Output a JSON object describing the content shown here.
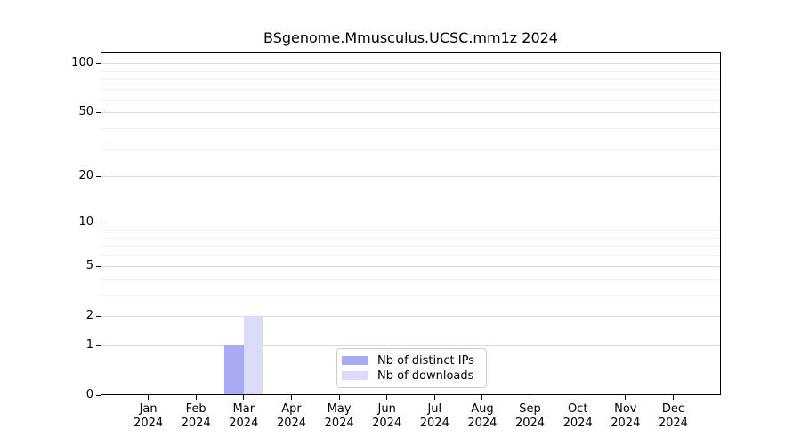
{
  "chart_data": {
    "type": "bar",
    "title": "BSgenome.Mmusculus.UCSC.mm1z 2024",
    "x_year": "2024",
    "categories": [
      "Jan",
      "Feb",
      "Mar",
      "Apr",
      "May",
      "Jun",
      "Jul",
      "Aug",
      "Sep",
      "Oct",
      "Nov",
      "Dec"
    ],
    "series": [
      {
        "name": "Nb of distinct IPs",
        "color": "#a9a9f4",
        "values": [
          0,
          0,
          1,
          0,
          0,
          0,
          0,
          0,
          0,
          0,
          0,
          0
        ]
      },
      {
        "name": "Nb of downloads",
        "color": "#dbdbf8",
        "values": [
          0,
          0,
          2,
          0,
          0,
          0,
          0,
          0,
          0,
          0,
          0,
          0
        ]
      }
    ],
    "yscale": "log1p",
    "ylim": [
      0,
      118
    ],
    "y_ticks": [
      0,
      1,
      2,
      5,
      10,
      20,
      50,
      100
    ],
    "y_minor_gridlines": [
      3,
      4,
      6,
      7,
      8,
      9,
      30,
      40,
      60,
      70,
      80,
      90
    ],
    "grid": true,
    "legend_position": "bottom-center",
    "colors": {
      "axis": "#000000",
      "text": "#000000",
      "grid_major": "#dcdcdc",
      "grid_minor": "#f1f1f1",
      "legend_border": "#cccccc",
      "background": "#ffffff"
    }
  }
}
